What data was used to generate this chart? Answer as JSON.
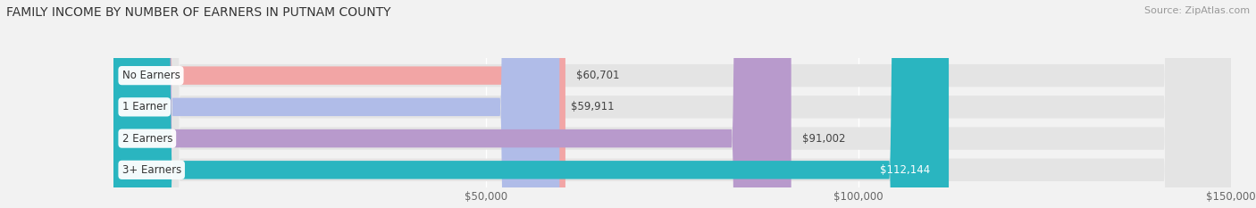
{
  "title": "FAMILY INCOME BY NUMBER OF EARNERS IN PUTNAM COUNTY",
  "source": "Source: ZipAtlas.com",
  "categories": [
    "No Earners",
    "1 Earner",
    "2 Earners",
    "3+ Earners"
  ],
  "values": [
    60701,
    59911,
    91002,
    112144
  ],
  "bar_colors": [
    "#f2a5a5",
    "#b0bce8",
    "#b89acc",
    "#2ab5c0"
  ],
  "label_colors": [
    "#555555",
    "#555555",
    "#555555",
    "#ffffff"
  ],
  "bg_color": "#f2f2f2",
  "bar_bg_color": "#e4e4e4",
  "xlim_min": 0,
  "xlim_max": 150000,
  "xticks": [
    50000,
    100000,
    150000
  ],
  "xtick_labels": [
    "$50,000",
    "$100,000",
    "$150,000"
  ],
  "title_fontsize": 10,
  "source_fontsize": 8,
  "label_fontsize": 8.5,
  "tick_fontsize": 8.5,
  "category_fontsize": 8.5
}
